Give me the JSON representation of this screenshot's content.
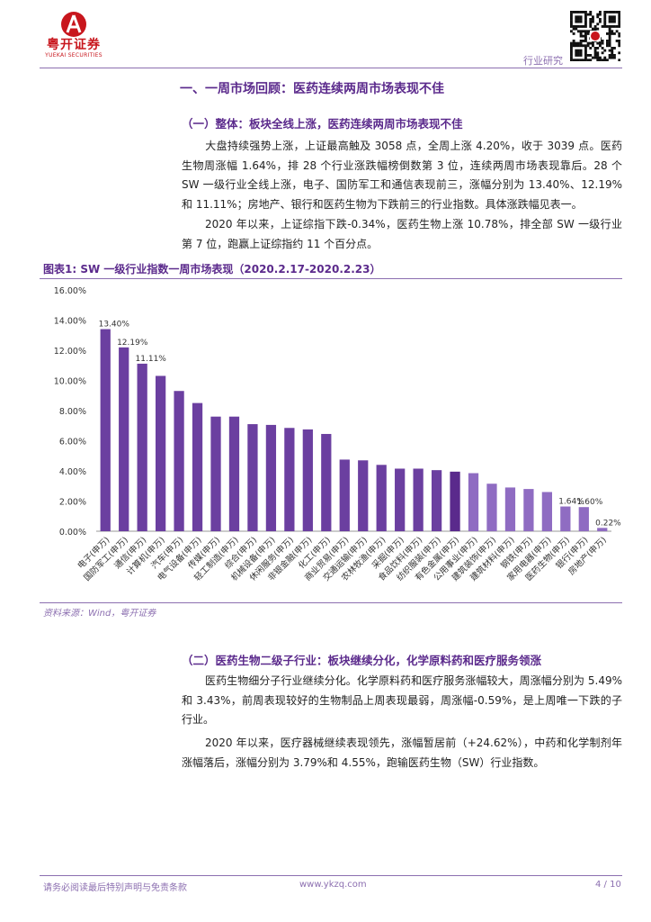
{
  "header": {
    "logo_cn": "粤开证券",
    "logo_en": "YUEKAI SECURITIES",
    "section_label": "行业研究"
  },
  "heading1": "一、一周市场回顾：医药连续两周市场表现不佳",
  "section1": {
    "heading": "（一）整体：板块全线上涨，医药连续两周市场表现不佳",
    "para1": "大盘持续强势上涨，上证最高触及 3058 点，全周上涨 4.20%，收于 3039 点。医药生物周涨幅 1.64%，排 28 个行业涨跌幅榜倒数第 3 位，连续两周市场表现靠后。28 个 SW 一级行业全线上涨，电子、国防军工和通信表现前三，涨幅分别为 13.40%、12.19% 和 11.11%；房地产、银行和医药生物为下跌前三的行业指数。具体涨跌幅见表一。",
    "para2": "2020 年以来，上证综指下跌-0.34%，医药生物上涨 10.78%，排全部 SW 一级行业第 7 位，跑赢上证综指约 11 个百分点。"
  },
  "figure": {
    "title": "图表1:   SW 一级行业指数一周市场表现（2020.2.17-2020.2.23）",
    "source": "资料来源：Wind，粤开证券"
  },
  "chart_data": {
    "type": "bar",
    "title": "",
    "xlabel": "",
    "ylabel": "",
    "ylim": [
      0,
      16
    ],
    "yticks": [
      "0.00%",
      "2.00%",
      "4.00%",
      "6.00%",
      "8.00%",
      "10.00%",
      "12.00%",
      "14.00%",
      "16.00%"
    ],
    "grid": false,
    "categories": [
      "电子(申万)",
      "国防军工(申万)",
      "通信(申万)",
      "计算机(申万)",
      "汽车(申万)",
      "电气设备(申万)",
      "传媒(申万)",
      "轻工制造(申万)",
      "综合(申万)",
      "机械设备(申万)",
      "休闲服务(申万)",
      "非银金融(申万)",
      "化工(申万)",
      "商业贸易(申万)",
      "交通运输(申万)",
      "农林牧渔(申万)",
      "采掘(申万)",
      "食品饮料(申万)",
      "纺织服装(申万)",
      "有色金属(申万)",
      "公用事业(申万)",
      "建筑装饰(申万)",
      "建筑材料(申万)",
      "钢铁(申万)",
      "家用电器(申万)",
      "医药生物(申万)",
      "银行(申万)",
      "房地产(申万)"
    ],
    "values": [
      13.4,
      12.19,
      11.11,
      10.3,
      9.3,
      8.5,
      7.6,
      7.6,
      7.1,
      7.05,
      6.85,
      6.75,
      6.45,
      4.75,
      4.7,
      4.4,
      4.15,
      4.15,
      4.05,
      3.95,
      3.85,
      3.15,
      2.9,
      2.8,
      2.6,
      1.64,
      1.6,
      0.22
    ],
    "data_labels": [
      "13.40%",
      "12.19%",
      "11.11%",
      "",
      "",
      "",
      "",
      "",
      "",
      "",
      "",
      "",
      "",
      "",
      "",
      "",
      "",
      "",
      "",
      "",
      "",
      "",
      "",
      "",
      "",
      "1.64%",
      "1.60%",
      "0.22%"
    ],
    "colors": {
      "dark": "#6b3fa0",
      "highlight": "#5a2a8c",
      "light": "#8f6cc2"
    }
  },
  "section2": {
    "heading": "（二）医药生物二级子行业：板块继续分化，化学原料药和医疗服务领涨",
    "para1": "医药生物细分子行业继续分化。化学原料药和医疗服务涨幅较大，周涨幅分别为 5.49% 和 3.43%，前周表现较好的生物制品上周表现最弱，周涨幅-0.59%，是上周唯一下跌的子行业。",
    "para2": "2020 年以来，医疗器械继续表现领先，涨幅暂居前（+24.62%），中药和化学制剂年涨幅落后，涨幅分别为 3.79%和 4.55%，跑输医药生物（SW）行业指数。"
  },
  "footer": {
    "disclaimer": "请务必阅读最后特别声明与免责条款",
    "website": "www.ykzq.com",
    "page": "4 / 10"
  }
}
